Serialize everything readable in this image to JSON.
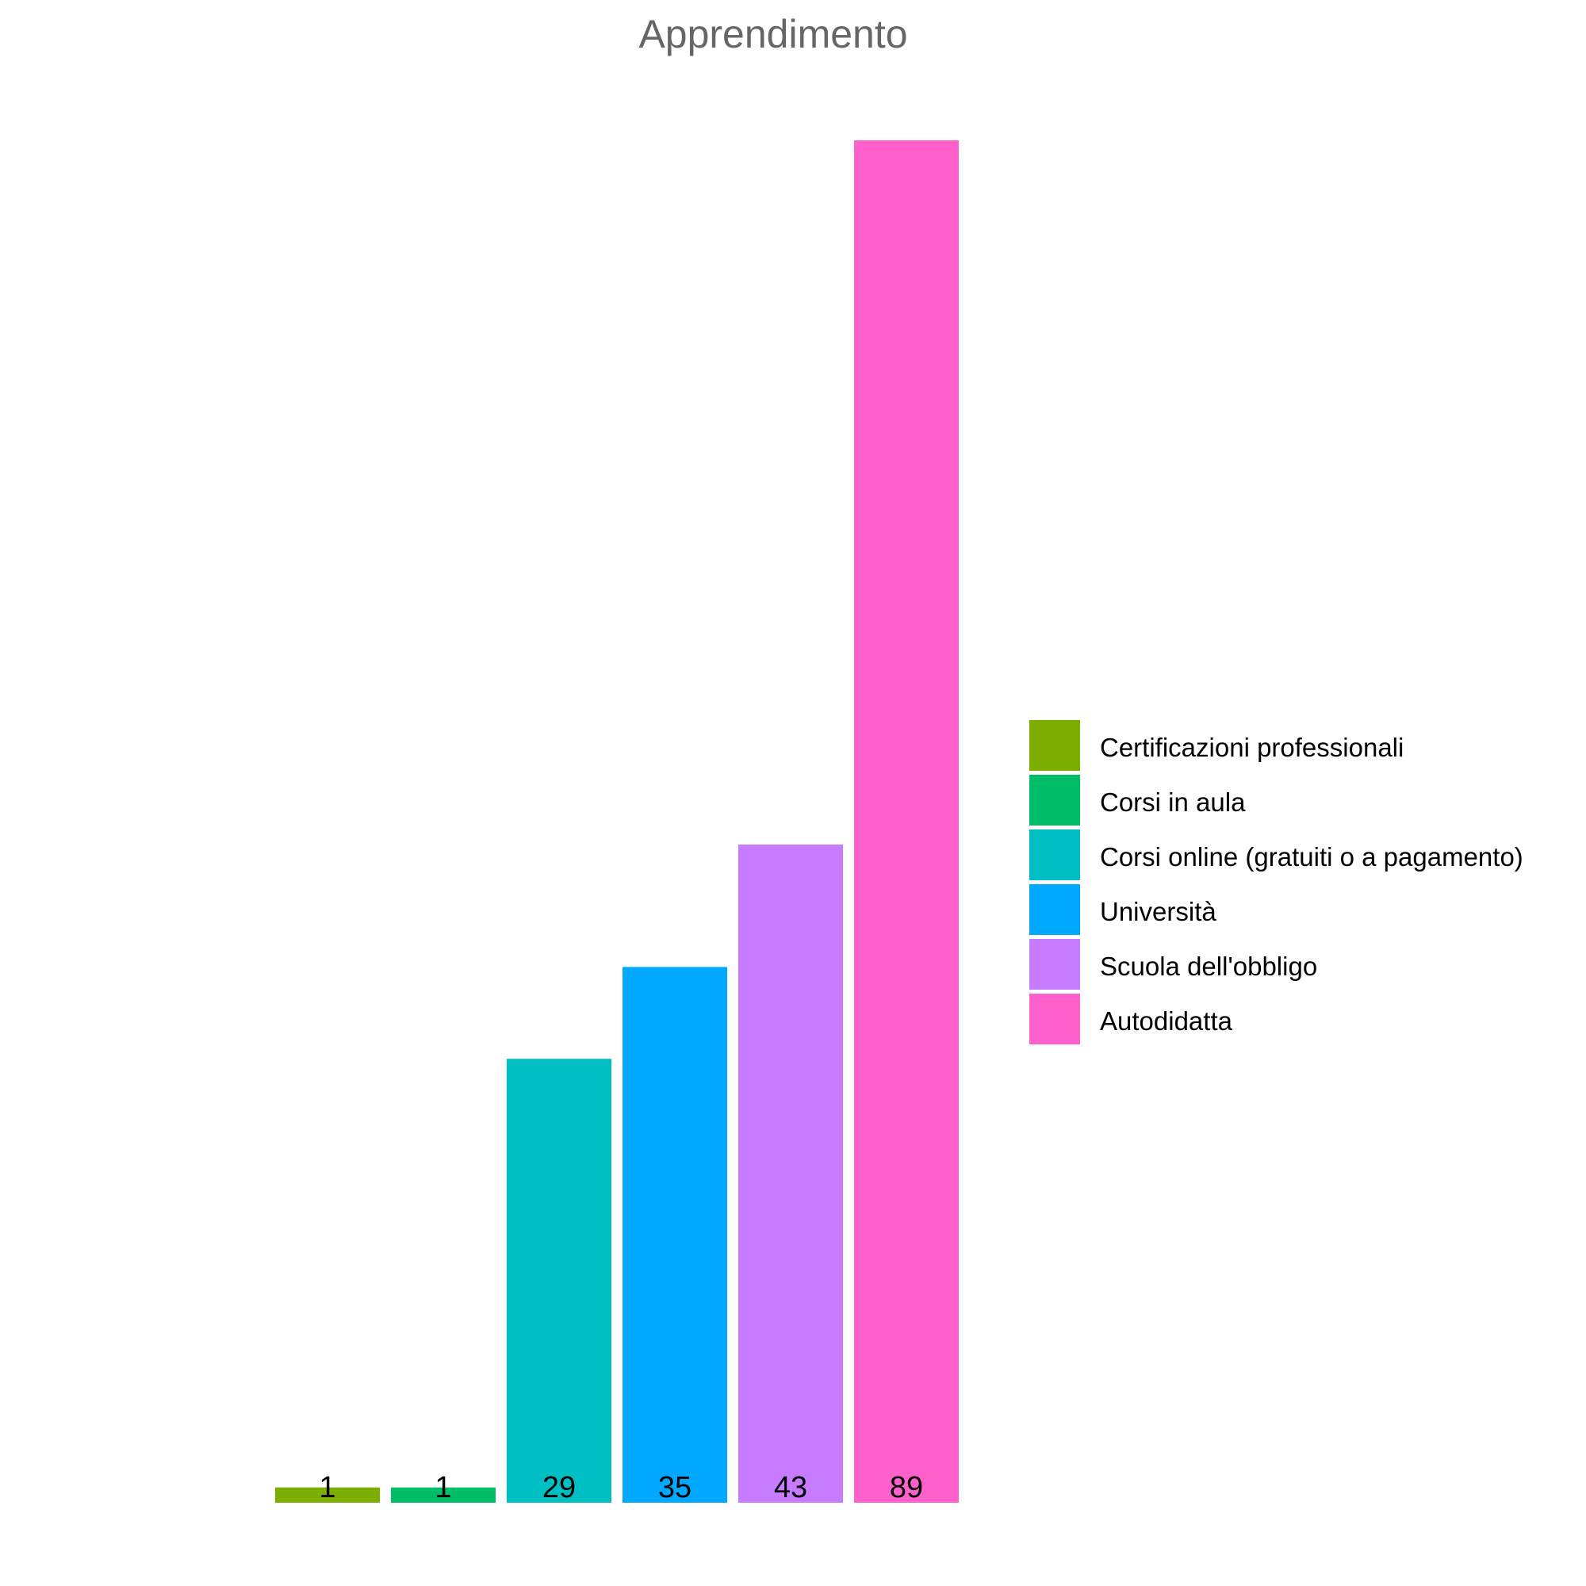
{
  "chart_data": {
    "type": "bar",
    "title": "Apprendimento",
    "categories": [
      "Certificazioni professionali",
      "Corsi in aula",
      "Corsi online (gratuiti o a pagamento)",
      "Università",
      "Scuola dell'obbligo",
      "Autodidatta"
    ],
    "values": [
      1,
      1,
      29,
      35,
      43,
      89
    ],
    "colors": [
      "#7CAE00",
      "#00BE67",
      "#00BFC4",
      "#00A9FF",
      "#C77CFF",
      "#FF61CC"
    ],
    "ylim": [
      0,
      89
    ],
    "grid": false,
    "legend_position": "right"
  }
}
